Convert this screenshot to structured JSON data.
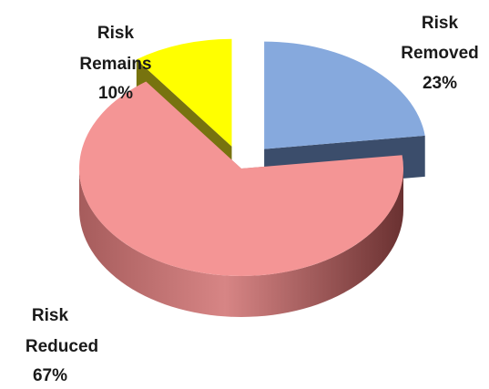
{
  "chart_data": {
    "type": "pie",
    "style": "3d-exploded",
    "title": "",
    "slices": [
      {
        "label_line1": "Risk",
        "label_line2": "Removed",
        "percent_label": "23%",
        "value": 23,
        "color": "#86a9dd",
        "side_color": "#3b4d6b"
      },
      {
        "label_line1": "Risk",
        "label_line2": "Reduced",
        "percent_label": "67%",
        "value": 67,
        "color": "#f49595",
        "side_color": "#b56767"
      },
      {
        "label_line1": "Risk",
        "label_line2": "Remains",
        "percent_label": "10%",
        "value": 10,
        "color": "#ffff00",
        "side_color": "#77730f"
      }
    ],
    "legend": "none"
  }
}
